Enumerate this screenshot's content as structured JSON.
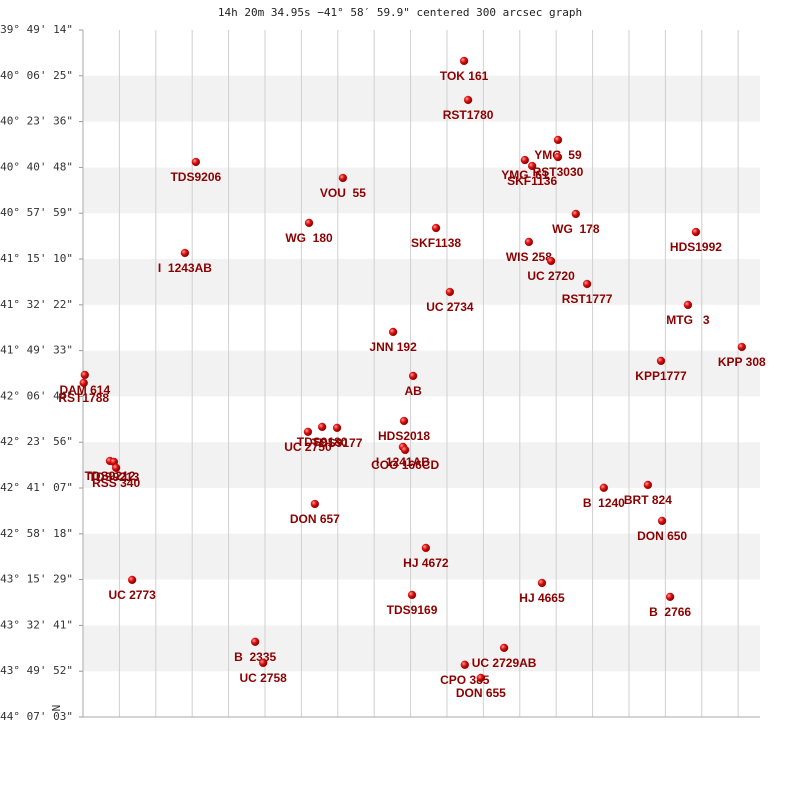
{
  "chart_data": {
    "type": "scatter",
    "title": "14h 20m 34.95s −41° 58′ 59.9\" centered 300 arcsec graph",
    "y_label": "N",
    "color": "#cc0000",
    "grid": true,
    "xlim": [
      0,
      18.6
    ],
    "xticks": [
      0,
      1,
      2,
      3,
      4,
      5,
      6,
      7,
      8,
      9,
      10,
      11,
      12,
      13,
      14,
      15,
      16,
      17,
      18
    ],
    "ylim": [
      -44.1175,
      -39.82056
    ],
    "yticks": [
      {
        "value": -39.82056,
        "label": "-39° 49' 14\""
      },
      {
        "value": -40.10694,
        "label": "-40° 06' 25\""
      },
      {
        "value": -40.39333,
        "label": "-40° 23' 36\""
      },
      {
        "value": -40.68,
        "label": "-40° 40' 48\""
      },
      {
        "value": -40.96639,
        "label": "-40° 57' 59\""
      },
      {
        "value": -41.25278,
        "label": "-41° 15' 10\""
      },
      {
        "value": -41.53944,
        "label": "-41° 32' 22\""
      },
      {
        "value": -41.82583,
        "label": "-41° 49' 33\""
      },
      {
        "value": -42.11222,
        "label": "-42° 06' 44\""
      },
      {
        "value": -42.39889,
        "label": "-42° 23' 56\""
      },
      {
        "value": -42.68528,
        "label": "-42° 41' 07\""
      },
      {
        "value": -42.97167,
        "label": "-42° 58' 18\""
      },
      {
        "value": -43.25806,
        "label": "-43° 15' 29\""
      },
      {
        "value": -43.54472,
        "label": "-43° 32' 41\""
      },
      {
        "value": -43.83111,
        "label": "-43° 49' 52\""
      },
      {
        "value": -44.1175,
        "label": "-44° 07' 03\""
      }
    ],
    "labels": [
      "TOK 161",
      "RST1780",
      "TDS9206",
      "VOU  55",
      "YMG  59",
      "RST3030",
      "YMG  61",
      "SKF1136",
      "WG  178",
      "WG  180",
      "SKF1138",
      "HDS1992",
      "WIS 258",
      "I  1243AB",
      "UC 2720",
      "RST1777",
      "UC 2734",
      "MTG   3",
      "JNN 192",
      "KPP 308",
      "KPP1777",
      "AB",
      "DAM 614",
      "RST1788",
      "HDS2018",
      "TDS9180",
      "TDS9177",
      "UC 2750",
      "I  1241AB",
      "COO 166CD",
      "TDS9212",
      "TDS9213",
      "RSS 340",
      "B  1240",
      "BRT 824",
      "DON 650",
      "DON 657",
      "HJ 4672",
      "UC 2773",
      "HJ 4665",
      "TDS9169",
      "B  2766",
      "B  2335",
      "UC 2729AB",
      "UC 2758",
      "CPO 385",
      "DON 655"
    ],
    "x": [
      10.47,
      10.58,
      3.1,
      7.14,
      13.05,
      13.05,
      12.14,
      12.34,
      13.54,
      6.21,
      9.7,
      16.84,
      12.25,
      2.8,
      12.86,
      13.85,
      10.08,
      16.62,
      8.52,
      18.1,
      15.88,
      9.07,
      0.05,
      0.02,
      8.82,
      6.57,
      6.98,
      6.18,
      8.79,
      8.85,
      0.74,
      0.85,
      0.91,
      14.31,
      15.52,
      15.91,
      6.37,
      9.42,
      1.35,
      12.61,
      9.04,
      16.13,
      4.73,
      11.57,
      4.95,
      10.49,
      10.93
    ],
    "values": [
      -40.014,
      -40.258,
      -40.646,
      -40.746,
      -40.508,
      -40.615,
      -40.634,
      -40.671,
      -40.971,
      -41.027,
      -41.059,
      -41.084,
      -41.146,
      -41.215,
      -41.265,
      -41.409,
      -41.459,
      -41.54,
      -41.709,
      -41.803,
      -41.89,
      -41.984,
      -41.978,
      -42.028,
      -42.266,
      -42.303,
      -42.309,
      -42.334,
      -42.428,
      -42.447,
      -42.516,
      -42.522,
      -42.559,
      -42.684,
      -42.666,
      -42.891,
      -42.785,
      -43.06,
      -43.26,
      -43.279,
      -43.354,
      -43.366,
      -43.647,
      -43.685,
      -43.779,
      -43.791,
      -43.873
    ]
  }
}
